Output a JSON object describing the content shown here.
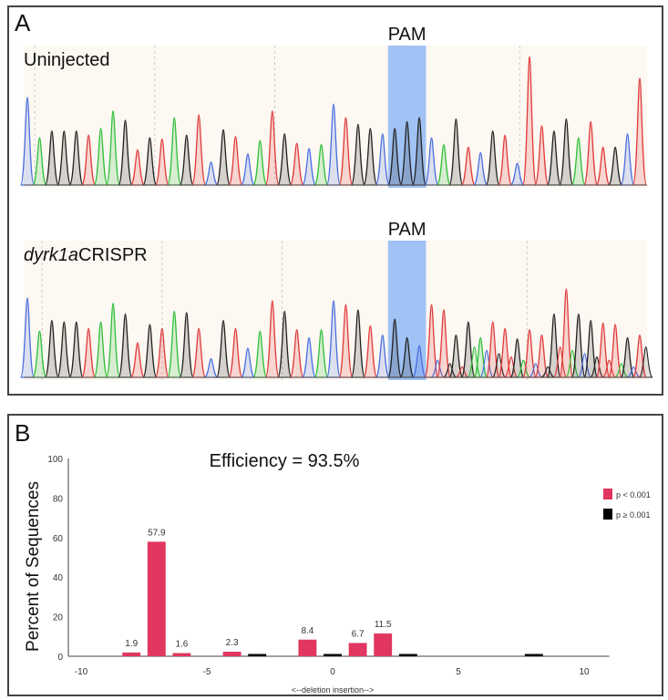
{
  "panel_a": {
    "label": "A",
    "traces": [
      {
        "title_italic": "",
        "title": "Uninjected",
        "pam_label": "PAM"
      },
      {
        "title_italic": "dyrk1a",
        "title": " CRISPR",
        "pam_label": "PAM"
      }
    ]
  },
  "panel_b": {
    "label": "B",
    "annotation": "Efficiency = 93.5%"
  },
  "colors": {
    "A": "#2fbf3a",
    "C": "#4a6fe0",
    "G": "#222222",
    "T": "#e03a3a",
    "pam": "#8fb8f5",
    "sig": "#e0365f",
    "nonsig": "#000000",
    "trace_bg": "#fdf8f2"
  },
  "chart_data": [
    {
      "type": "chromatogram",
      "traces": [
        {
          "name": "Uninjected",
          "bases": "CAGGGTAAGTGTAGTCGTCATGTCACTGGCGGGCAGTCGTCTTGGATTGCT",
          "heights": [
            0.65,
            0.35,
            0.4,
            0.4,
            0.4,
            0.37,
            0.42,
            0.55,
            0.48,
            0.26,
            0.35,
            0.34,
            0.5,
            0.37,
            0.52,
            0.17,
            0.41,
            0.36,
            0.23,
            0.33,
            0.55,
            0.38,
            0.31,
            0.27,
            0.3,
            0.6,
            0.5,
            0.45,
            0.42,
            0.38,
            0.42,
            0.47,
            0.5,
            0.35,
            0.3,
            0.49,
            0.28,
            0.24,
            0.4,
            0.37,
            0.16,
            0.95,
            0.44,
            0.4,
            0.49,
            0.35,
            0.47,
            0.28,
            0.28,
            0.38,
            0.79
          ],
          "pam_index": [
            30,
            32
          ]
        },
        {
          "name": "dyrk1a CRISPR",
          "bases": "CAGGGTAAGTGTAGTCGTCATGTCACTGTCGGCTTGGATTGTTGTGGTTGT",
          "heights": [
            0.6,
            0.35,
            0.43,
            0.42,
            0.42,
            0.37,
            0.42,
            0.56,
            0.48,
            0.26,
            0.4,
            0.37,
            0.5,
            0.49,
            0.37,
            0.14,
            0.43,
            0.37,
            0.22,
            0.35,
            0.58,
            0.5,
            0.36,
            0.3,
            0.36,
            0.58,
            0.55,
            0.51,
            0.39,
            0.32,
            0.44,
            0.3,
            0.24,
            0.55,
            0.51,
            0.32,
            0.42,
            0.3,
            0.42,
            0.37,
            0.29,
            0.36,
            0.32,
            0.48,
            0.67,
            0.48,
            0.43,
            0.41,
            0.4,
            0.3,
            0.32
          ],
          "pam_index": [
            30,
            32
          ]
        }
      ]
    },
    {
      "type": "bar",
      "ylabel": "Percent of Sequences",
      "xlabel": "<--deletion     insertion-->",
      "xlim": [
        -10,
        10
      ],
      "ylim": [
        0,
        100
      ],
      "xticks": [
        -10,
        -5,
        0,
        5,
        10
      ],
      "yticks": [
        0,
        20,
        40,
        60,
        80,
        100
      ],
      "legend_position": "top-right",
      "series": [
        {
          "name": "p < 0.001",
          "color": "#e0365f",
          "x": [
            -8,
            -7,
            -6,
            -4,
            -1,
            1,
            2
          ],
          "values": [
            1.9,
            57.9,
            1.6,
            2.3,
            8.4,
            6.7,
            11.5
          ],
          "labels": [
            "1.9",
            "57.9",
            "1.6",
            "2.3",
            "8.4",
            "6.7",
            "11.5"
          ]
        },
        {
          "name": "p ≥ 0.001",
          "color": "#000000",
          "x": [
            -3,
            0,
            3,
            8
          ],
          "values": [
            1.0,
            1.0,
            0.6,
            0.3
          ]
        }
      ]
    }
  ]
}
